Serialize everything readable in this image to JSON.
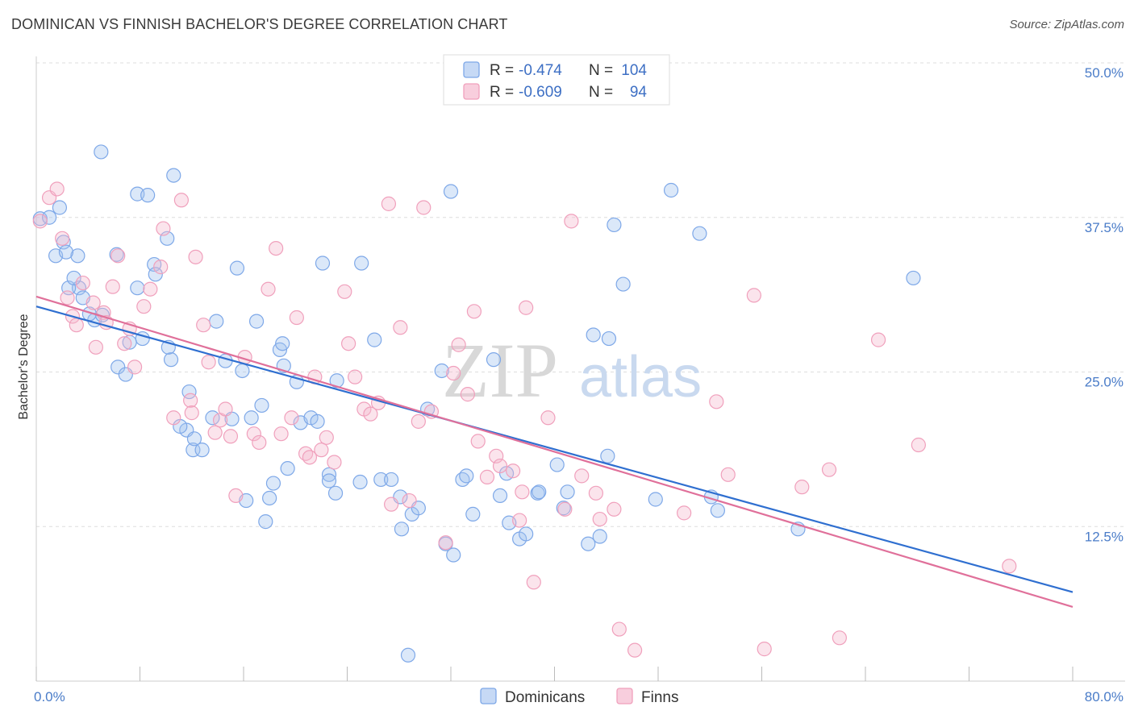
{
  "title": "DOMINICAN VS FINNISH BACHELOR'S DEGREE CORRELATION CHART",
  "source": "Source: ZipAtlas.com",
  "watermark": {
    "zip": "ZIP",
    "atlas": "atlas"
  },
  "legend": {
    "rows": [
      {
        "r_label": "R =",
        "r_value": "-0.474",
        "n_label": "N =",
        "n_value": "104",
        "color": "#7ea8e8"
      },
      {
        "r_label": "R =",
        "r_value": "-0.609",
        "n_label": "N =",
        "n_value": "94",
        "color": "#f0a0bc"
      }
    ]
  },
  "bottom_legend": [
    {
      "name": "Dominicans",
      "color": "#7ea8e8"
    },
    {
      "name": "Finns",
      "color": "#f0a0bc"
    }
  ],
  "chart_data": {
    "type": "scatter",
    "title": "DOMINICAN VS FINNISH BACHELOR'S DEGREE CORRELATION CHART",
    "xlabel": "",
    "ylabel": "Bachelor's Degree",
    "xlim": [
      0,
      80
    ],
    "ylim": [
      0,
      50
    ],
    "x_tick_labels": [
      "0.0%",
      "80.0%"
    ],
    "y_tick_labels": [
      "12.5%",
      "25.0%",
      "37.5%",
      "50.0%"
    ],
    "y_ticks": [
      12.5,
      25,
      37.5,
      50
    ],
    "grid": true,
    "series": [
      {
        "name": "Dominicans",
        "color": "#7ea8e8",
        "line_color": "#2f6fd0",
        "trend": [
          [
            0,
            30.3
          ],
          [
            80,
            7.2
          ]
        ],
        "points": [
          [
            0.3,
            37.4
          ],
          [
            1.0,
            37.5
          ],
          [
            1.8,
            38.3
          ],
          [
            1.5,
            34.4
          ],
          [
            2.1,
            35.5
          ],
          [
            3.2,
            34.4
          ],
          [
            3.3,
            31.8
          ],
          [
            4.5,
            29.2
          ],
          [
            5.1,
            29.6
          ],
          [
            6.2,
            34.5
          ],
          [
            5.0,
            42.8
          ],
          [
            7.8,
            39.4
          ],
          [
            8.6,
            39.3
          ],
          [
            10.6,
            40.9
          ],
          [
            10.1,
            35.8
          ],
          [
            9.1,
            33.7
          ],
          [
            9.2,
            32.9
          ],
          [
            7.8,
            31.8
          ],
          [
            8.2,
            27.7
          ],
          [
            7.2,
            27.4
          ],
          [
            6.3,
            25.4
          ],
          [
            6.9,
            24.8
          ],
          [
            10.4,
            26.0
          ],
          [
            10.2,
            27.0
          ],
          [
            11.8,
            23.4
          ],
          [
            11.6,
            20.3
          ],
          [
            12.1,
            18.7
          ],
          [
            12.2,
            19.6
          ],
          [
            12.8,
            18.7
          ],
          [
            13.6,
            21.3
          ],
          [
            13.9,
            29.1
          ],
          [
            15.1,
            21.2
          ],
          [
            15.5,
            33.4
          ],
          [
            15.9,
            25.1
          ],
          [
            16.6,
            21.3
          ],
          [
            16.2,
            14.6
          ],
          [
            17.0,
            29.1
          ],
          [
            17.4,
            22.3
          ],
          [
            18.0,
            14.8
          ],
          [
            18.8,
            26.8
          ],
          [
            18.3,
            16.0
          ],
          [
            17.7,
            12.9
          ],
          [
            19.1,
            25.5
          ],
          [
            19.0,
            27.3
          ],
          [
            20.1,
            24.2
          ],
          [
            20.4,
            20.9
          ],
          [
            21.2,
            21.3
          ],
          [
            21.7,
            21.0
          ],
          [
            22.1,
            33.8
          ],
          [
            23.2,
            24.3
          ],
          [
            22.6,
            16.7
          ],
          [
            22.6,
            16.2
          ],
          [
            23.1,
            15.2
          ],
          [
            25.0,
            16.1
          ],
          [
            25.1,
            33.8
          ],
          [
            26.1,
            27.6
          ],
          [
            26.6,
            16.3
          ],
          [
            27.4,
            16.3
          ],
          [
            28.1,
            14.9
          ],
          [
            28.2,
            12.3
          ],
          [
            29.0,
            13.5
          ],
          [
            29.5,
            14.0
          ],
          [
            30.2,
            22.0
          ],
          [
            31.3,
            25.1
          ],
          [
            31.6,
            11.1
          ],
          [
            32.2,
            10.2
          ],
          [
            32.9,
            16.3
          ],
          [
            33.2,
            16.6
          ],
          [
            33.7,
            13.5
          ],
          [
            35.3,
            26.0
          ],
          [
            35.8,
            15.0
          ],
          [
            36.5,
            12.8
          ],
          [
            37.3,
            11.5
          ],
          [
            37.8,
            11.9
          ],
          [
            38.7,
            15.2
          ],
          [
            38.8,
            15.3
          ],
          [
            40.2,
            17.5
          ],
          [
            40.7,
            14.0
          ],
          [
            41.0,
            15.3
          ],
          [
            42.6,
            11.1
          ],
          [
            43.5,
            11.7
          ],
          [
            44.1,
            18.2
          ],
          [
            44.2,
            27.7
          ],
          [
            44.6,
            36.9
          ],
          [
            45.3,
            32.1
          ],
          [
            47.8,
            14.7
          ],
          [
            49.0,
            39.7
          ],
          [
            51.2,
            36.2
          ],
          [
            52.1,
            14.9
          ],
          [
            52.6,
            13.8
          ],
          [
            58.8,
            12.3
          ],
          [
            67.7,
            32.6
          ],
          [
            28.7,
            2.1
          ],
          [
            32.0,
            39.6
          ],
          [
            36.3,
            16.8
          ],
          [
            43.0,
            28.0
          ],
          [
            11.1,
            20.6
          ],
          [
            2.5,
            31.8
          ],
          [
            3.6,
            31.0
          ],
          [
            4.1,
            29.7
          ],
          [
            2.3,
            34.7
          ],
          [
            2.9,
            32.6
          ],
          [
            19.4,
            17.2
          ],
          [
            14.6,
            25.9
          ]
        ]
      },
      {
        "name": "Finns",
        "color": "#f0a0bc",
        "line_color": "#e0709a",
        "trend": [
          [
            0,
            31.1
          ],
          [
            80,
            6.0
          ]
        ],
        "points": [
          [
            0.3,
            37.2
          ],
          [
            1.0,
            39.1
          ],
          [
            1.6,
            39.8
          ],
          [
            2.0,
            35.8
          ],
          [
            2.4,
            31.0
          ],
          [
            2.8,
            29.5
          ],
          [
            3.1,
            28.8
          ],
          [
            3.6,
            32.2
          ],
          [
            4.4,
            30.6
          ],
          [
            4.6,
            27.0
          ],
          [
            5.2,
            29.8
          ],
          [
            5.4,
            29.0
          ],
          [
            5.9,
            31.9
          ],
          [
            6.3,
            34.4
          ],
          [
            6.8,
            27.3
          ],
          [
            7.2,
            28.5
          ],
          [
            7.6,
            25.4
          ],
          [
            8.3,
            30.3
          ],
          [
            8.8,
            31.7
          ],
          [
            9.6,
            33.5
          ],
          [
            9.8,
            36.6
          ],
          [
            10.6,
            21.3
          ],
          [
            11.2,
            38.9
          ],
          [
            11.9,
            22.7
          ],
          [
            12.0,
            21.7
          ],
          [
            12.3,
            34.3
          ],
          [
            12.9,
            28.8
          ],
          [
            13.3,
            25.8
          ],
          [
            13.8,
            20.1
          ],
          [
            14.2,
            21.1
          ],
          [
            14.6,
            22.0
          ],
          [
            15.0,
            19.8
          ],
          [
            15.4,
            15.0
          ],
          [
            16.1,
            26.2
          ],
          [
            16.8,
            20.0
          ],
          [
            17.2,
            19.3
          ],
          [
            17.9,
            31.7
          ],
          [
            18.5,
            35.0
          ],
          [
            18.9,
            20.0
          ],
          [
            19.7,
            21.3
          ],
          [
            20.1,
            29.4
          ],
          [
            20.8,
            18.4
          ],
          [
            21.1,
            18.1
          ],
          [
            21.5,
            24.6
          ],
          [
            22.0,
            18.7
          ],
          [
            22.4,
            19.7
          ],
          [
            23.0,
            17.7
          ],
          [
            23.8,
            31.5
          ],
          [
            24.1,
            27.3
          ],
          [
            24.6,
            24.6
          ],
          [
            25.3,
            22.0
          ],
          [
            25.8,
            21.6
          ],
          [
            26.4,
            22.5
          ],
          [
            27.2,
            38.6
          ],
          [
            27.4,
            14.3
          ],
          [
            28.1,
            28.6
          ],
          [
            28.8,
            14.6
          ],
          [
            29.5,
            21.0
          ],
          [
            29.9,
            38.3
          ],
          [
            30.5,
            21.8
          ],
          [
            31.6,
            11.2
          ],
          [
            32.2,
            24.9
          ],
          [
            32.6,
            27.2
          ],
          [
            33.3,
            23.2
          ],
          [
            33.8,
            29.9
          ],
          [
            34.1,
            19.4
          ],
          [
            34.8,
            16.5
          ],
          [
            35.5,
            18.2
          ],
          [
            35.8,
            17.4
          ],
          [
            36.8,
            17.0
          ],
          [
            37.3,
            13.0
          ],
          [
            37.5,
            15.3
          ],
          [
            37.8,
            30.2
          ],
          [
            38.4,
            8.0
          ],
          [
            39.5,
            21.3
          ],
          [
            40.8,
            13.9
          ],
          [
            41.3,
            37.2
          ],
          [
            42.1,
            16.6
          ],
          [
            43.2,
            15.2
          ],
          [
            43.5,
            13.1
          ],
          [
            44.6,
            13.9
          ],
          [
            45.0,
            4.2
          ],
          [
            46.2,
            2.5
          ],
          [
            50.0,
            13.6
          ],
          [
            52.5,
            22.6
          ],
          [
            53.4,
            16.7
          ],
          [
            55.4,
            31.2
          ],
          [
            56.2,
            2.6
          ],
          [
            59.1,
            15.7
          ],
          [
            61.2,
            17.1
          ],
          [
            62.0,
            3.5
          ],
          [
            65.0,
            27.6
          ],
          [
            68.1,
            19.1
          ],
          [
            75.1,
            9.3
          ]
        ]
      }
    ]
  }
}
